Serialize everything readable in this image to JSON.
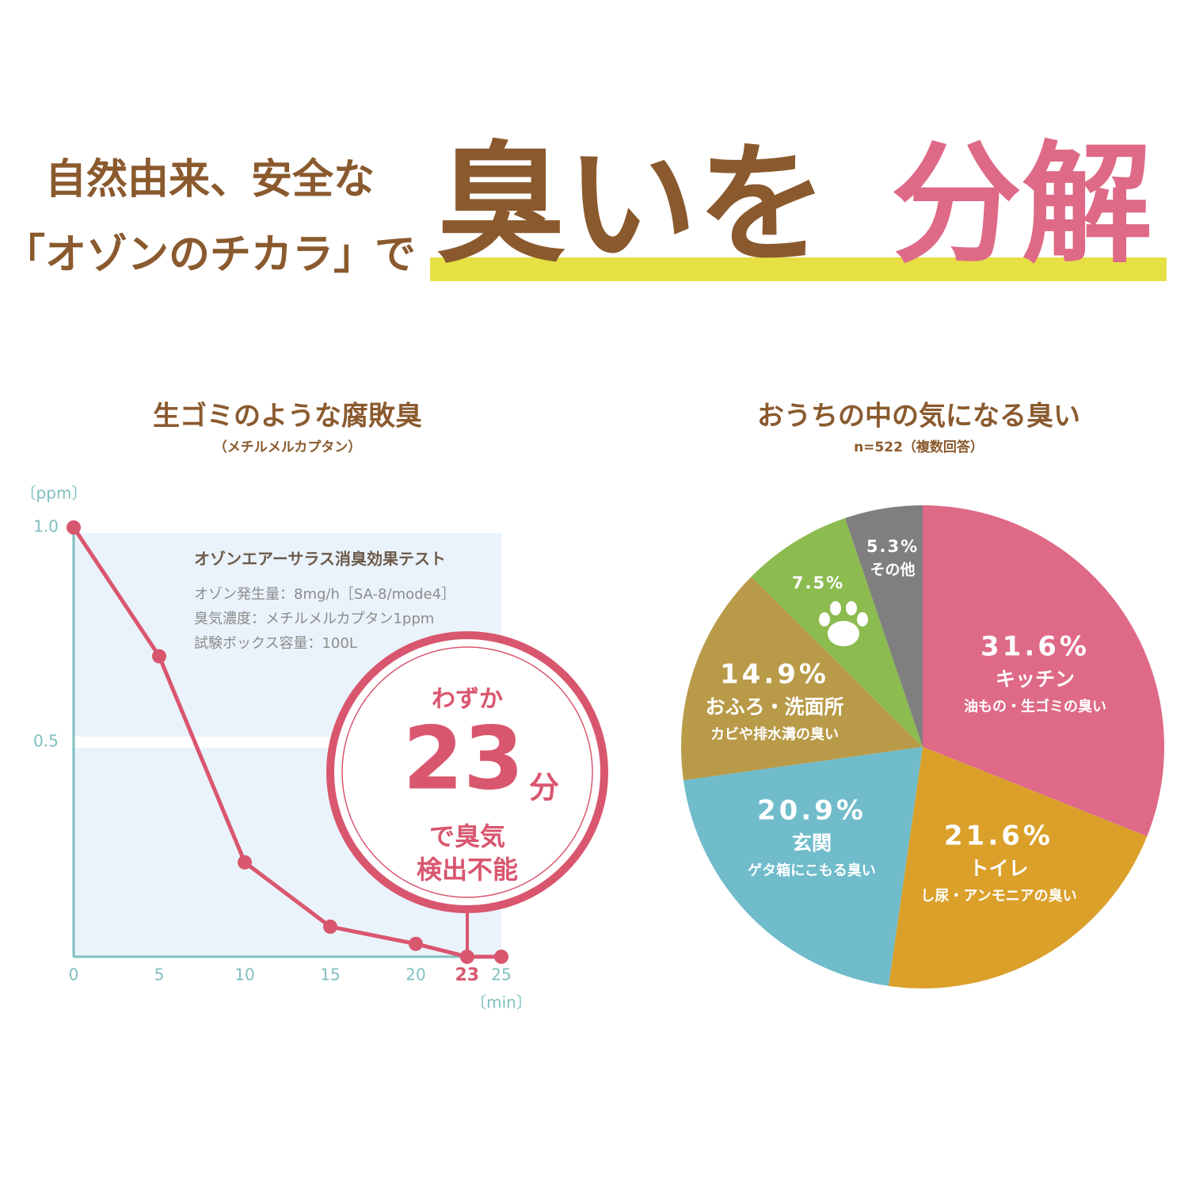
{
  "header": {
    "line1": "自然由来、安全な",
    "line2": "「オゾンのチカラ」で",
    "headline": "臭いを",
    "headline_accent": "分解"
  },
  "chart_data": [
    {
      "type": "line",
      "title": "生ゴミのような腐敗臭",
      "subtitle": "（メチルメルカプタン）",
      "ylabel": "〔ppm〕",
      "xlabel": "〔min〕",
      "x": [
        0,
        5,
        10,
        15,
        20,
        23,
        25
      ],
      "values": [
        1,
        0.7,
        0.22,
        0.07,
        0.03,
        0,
        0
      ],
      "color": "#d9566f",
      "xlim": [
        0,
        25
      ],
      "ylim": [
        0,
        1
      ],
      "xticks": [
        0,
        5,
        10,
        15,
        20,
        23,
        25
      ],
      "yticks": [
        0.5,
        {
          "value": 1,
          "label": "1.0"
        }
      ],
      "grid": true,
      "highlight_xtick": 23,
      "box": {
        "title": "オゾンエアーサラス消臭効果テスト",
        "lines": [
          "オゾン発生量：8mg/h［SA-8/mode4］",
          "臭気濃度：メチルメルカプタン1ppm",
          "試験ボックス容量：100L"
        ]
      },
      "annotation": {
        "lead": "わずか",
        "number": "23",
        "unit": "分",
        "tail": [
          "で臭気",
          "検出不能"
        ]
      }
    },
    {
      "type": "pie",
      "title": "おうちの中の気になる臭い",
      "subtitle": "n=522（複数回答）",
      "categories": [
        "キッチン",
        "トイレ",
        "玄関",
        "おふろ・洗面所",
        null,
        "その他"
      ],
      "sublabels": [
        "油もの・生ゴミの臭い",
        "し尿・アンモニアの臭い",
        "ゲタ箱にこもる臭い",
        "カビや排水溝の臭い",
        null,
        null
      ],
      "values": [
        31.6,
        21.6,
        20.9,
        14.9,
        7.5,
        5.3
      ],
      "value_labels": [
        "31.6%",
        "21.6%",
        "20.9%",
        "14.9%",
        "7.5%",
        "5.3%"
      ],
      "colors": [
        "#de6a87",
        "#dba02a",
        "#70bccb",
        "#b89a48",
        "#8cbb50",
        "#7f7f7f"
      ]
    }
  ]
}
